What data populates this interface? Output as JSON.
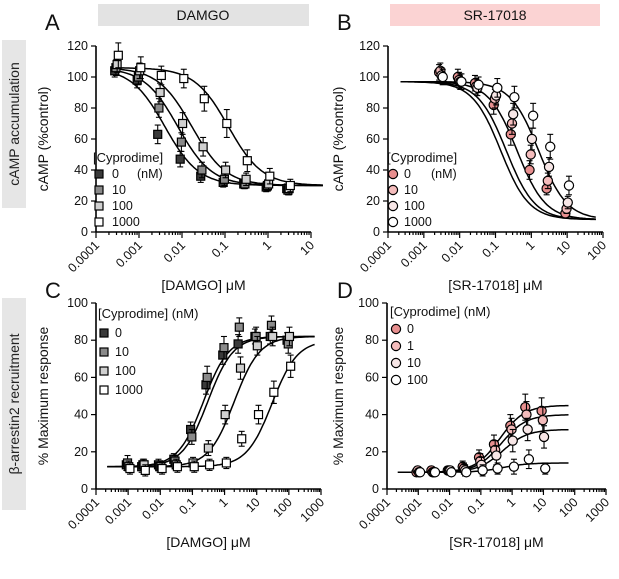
{
  "row_labels": [
    "cAMP accumulation",
    "β-arrestin2 recruitment"
  ],
  "column_headers": [
    {
      "text": "DAMGO",
      "color": "#e3e3e3"
    },
    {
      "text": "SR-17018",
      "color": "#fbd3d3"
    }
  ],
  "chart_data": [
    {
      "panel": "A",
      "type": "scatter",
      "xlabel": "[DAMGO] μM",
      "ylabel": "cAMP (%control)",
      "xscale": "log",
      "xlim": [
        0.0001,
        10
      ],
      "ylim": [
        0,
        120
      ],
      "xticks": [
        "0.0001",
        "0.001",
        "0.01",
        "0.1",
        "1",
        "10"
      ],
      "yticks": [
        "0",
        "20",
        "40",
        "60",
        "80",
        "100",
        "120"
      ],
      "legend_title": "[Cyprodime]",
      "legend_unit": "(nM)",
      "series": [
        {
          "name": "0",
          "marker": "square",
          "fill": "#3a3a3a",
          "top": 106,
          "bottom": 30,
          "ec50": 0.004,
          "x": [
            0.0003,
            0.001,
            0.003,
            0.01,
            0.03,
            0.1,
            0.3,
            1,
            3
          ],
          "y": [
            104,
            98,
            63,
            47,
            36,
            32,
            31,
            29,
            28
          ],
          "err": [
            4,
            5,
            6,
            5,
            4,
            3,
            3,
            3,
            3
          ]
        },
        {
          "name": "10",
          "marker": "square",
          "fill": "#8a8a8a",
          "top": 106,
          "bottom": 30,
          "ec50": 0.008,
          "x": [
            0.0003,
            0.001,
            0.003,
            0.01,
            0.03,
            0.1,
            0.3,
            1,
            3
          ],
          "y": [
            106,
            100,
            80,
            58,
            40,
            34,
            31,
            30,
            27
          ],
          "err": [
            5,
            5,
            6,
            6,
            5,
            4,
            3,
            3,
            3
          ]
        },
        {
          "name": "100",
          "marker": "square",
          "fill": "#d0d0d0",
          "top": 106,
          "bottom": 30,
          "ec50": 0.017,
          "x": [
            0.0003,
            0.001,
            0.003,
            0.01,
            0.03,
            0.1,
            0.3,
            1,
            3
          ],
          "y": [
            108,
            104,
            90,
            70,
            55,
            40,
            34,
            31,
            28
          ],
          "err": [
            5,
            5,
            6,
            7,
            6,
            5,
            4,
            4,
            4
          ]
        },
        {
          "name": "1000",
          "marker": "square",
          "fill": "#ffffff",
          "top": 106,
          "bottom": 30,
          "ec50": 0.12,
          "x": [
            0.0003,
            0.001,
            0.003,
            0.01,
            0.03,
            0.1,
            0.3,
            1,
            3
          ],
          "y": [
            114,
            106,
            101,
            99,
            86,
            70,
            46,
            36,
            30
          ],
          "err": [
            8,
            7,
            6,
            6,
            8,
            9,
            7,
            5,
            4
          ]
        }
      ]
    },
    {
      "panel": "B",
      "type": "scatter",
      "xlabel": "[SR-17018] μM",
      "ylabel": "cAMP (%control)",
      "xscale": "log",
      "xlim": [
        0.0001,
        100
      ],
      "ylim": [
        0,
        120
      ],
      "xticks": [
        "0.0001",
        "0.001",
        "0.01",
        "0.1",
        "1",
        "10",
        "100"
      ],
      "yticks": [
        "0",
        "20",
        "40",
        "60",
        "80",
        "100",
        "120"
      ],
      "legend_title": "[Cyprodime]",
      "legend_unit": "(nM)",
      "series": [
        {
          "name": "0",
          "marker": "circle",
          "fill": "#e88f8f",
          "top": 97,
          "bottom": 8,
          "ec50": 0.14,
          "x": [
            0.003,
            0.01,
            0.03,
            0.1,
            0.3,
            1,
            3,
            10
          ],
          "y": [
            103,
            100,
            96,
            82,
            63,
            40,
            28,
            12
          ],
          "err": [
            5,
            5,
            5,
            6,
            7,
            6,
            4,
            3
          ]
        },
        {
          "name": "10",
          "marker": "circle",
          "fill": "#f4bcbc",
          "top": 97,
          "bottom": 8,
          "ec50": 0.2,
          "x": [
            0.003,
            0.01,
            0.03,
            0.1,
            0.3,
            1,
            3,
            10
          ],
          "y": [
            104,
            98,
            94,
            86,
            70,
            50,
            33,
            15
          ],
          "err": [
            5,
            5,
            5,
            6,
            7,
            6,
            5,
            3
          ]
        },
        {
          "name": "100",
          "marker": "circle",
          "fill": "#f7e6e6",
          "top": 97,
          "bottom": 8,
          "ec50": 0.4,
          "x": [
            0.003,
            0.01,
            0.03,
            0.1,
            0.3,
            1,
            3,
            10
          ],
          "y": [
            101,
            97,
            93,
            88,
            76,
            60,
            42,
            19
          ],
          "err": [
            5,
            5,
            5,
            6,
            7,
            7,
            6,
            4
          ]
        },
        {
          "name": "1000",
          "marker": "circle",
          "fill": "#ffffff",
          "top": 97,
          "bottom": 8,
          "ec50": 1.6,
          "x": [
            0.003,
            0.01,
            0.03,
            0.1,
            0.3,
            1,
            3,
            10
          ],
          "y": [
            100,
            97,
            95,
            93,
            87,
            75,
            55,
            30
          ],
          "err": [
            5,
            5,
            5,
            6,
            7,
            8,
            8,
            6
          ]
        }
      ]
    },
    {
      "panel": "C",
      "type": "scatter",
      "xlabel": "[DAMGO] μM",
      "ylabel": "% Maximum response",
      "xscale": "log",
      "xlim": [
        0.0001,
        1000
      ],
      "ylim": [
        0,
        100
      ],
      "xticks": [
        "0.0001",
        "0.001",
        "0.01",
        "0.1",
        "1",
        "10",
        "100",
        "1000"
      ],
      "yticks": [
        "0",
        "20",
        "40",
        "60",
        "80",
        "100"
      ],
      "legend_title": "[Cyprodime] (nM)",
      "series": [
        {
          "name": "0",
          "marker": "square",
          "fill": "#3a3a3a",
          "top": 82,
          "bottom": 12,
          "ec50": 0.22,
          "x": [
            0.001,
            0.003,
            0.01,
            0.03,
            0.1,
            0.3,
            1,
            3,
            10,
            30,
            100
          ],
          "y": [
            13,
            12,
            13,
            16,
            32,
            56,
            72,
            78,
            82,
            82,
            80
          ],
          "err": [
            3,
            3,
            3,
            3,
            4,
            5,
            5,
            5,
            4,
            4,
            4
          ]
        },
        {
          "name": "10",
          "marker": "square",
          "fill": "#8a8a8a",
          "top": 82,
          "bottom": 12,
          "ec50": 0.3,
          "x": [
            0.001,
            0.003,
            0.01,
            0.03,
            0.1,
            0.3,
            1,
            3,
            10,
            30,
            100
          ],
          "y": [
            14,
            13,
            12,
            15,
            28,
            60,
            76,
            87,
            82,
            88,
            78
          ],
          "err": [
            4,
            3,
            3,
            3,
            4,
            6,
            6,
            5,
            5,
            5,
            5
          ]
        },
        {
          "name": "100",
          "marker": "square",
          "fill": "#d0d0d0",
          "top": 82,
          "bottom": 12,
          "ec50": 2.0,
          "x": [
            0.001,
            0.003,
            0.01,
            0.03,
            0.1,
            0.3,
            1,
            3,
            10,
            30,
            100
          ],
          "y": [
            12,
            13,
            12,
            13,
            14,
            22,
            40,
            65,
            77,
            82,
            82
          ],
          "err": [
            3,
            3,
            3,
            3,
            3,
            4,
            5,
            6,
            5,
            5,
            5
          ]
        },
        {
          "name": "1000",
          "marker": "square",
          "fill": "#ffffff",
          "top": 80,
          "bottom": 12,
          "ec50": 30,
          "x": [
            0.001,
            0.003,
            0.01,
            0.03,
            0.1,
            0.3,
            1,
            3,
            10,
            30,
            100
          ],
          "y": [
            11,
            10,
            11,
            12,
            12,
            13,
            14,
            27,
            40,
            52,
            66
          ],
          "err": [
            3,
            3,
            3,
            3,
            3,
            3,
            3,
            4,
            5,
            6,
            6
          ]
        }
      ]
    },
    {
      "panel": "D",
      "type": "scatter",
      "xlabel": "[SR-17018] μM",
      "ylabel": "% Maximum response",
      "xscale": "log",
      "xlim": [
        0.0001,
        1000
      ],
      "ylim": [
        0,
        100
      ],
      "xticks": [
        "0.0001",
        "0.001",
        "0.01",
        "0.1",
        "1",
        "10",
        "100",
        "1000"
      ],
      "yticks": [
        "0",
        "20",
        "40",
        "60",
        "80",
        "100"
      ],
      "legend_title": "[Cyprodime] (nM)",
      "series": [
        {
          "name": "0",
          "marker": "circle",
          "fill": "#e88f8f",
          "top": 45,
          "bottom": 9,
          "ec50": 0.4,
          "x": [
            0.001,
            0.003,
            0.01,
            0.03,
            0.1,
            0.3,
            1,
            3,
            10
          ],
          "y": [
            9,
            10,
            10,
            12,
            17,
            24,
            34,
            44,
            42
          ],
          "err": [
            2,
            2,
            2,
            3,
            4,
            5,
            6,
            7,
            7
          ]
        },
        {
          "name": "1",
          "marker": "circle",
          "fill": "#f4bcbc",
          "top": 40,
          "bottom": 9,
          "ec50": 0.45,
          "x": [
            0.001,
            0.003,
            0.01,
            0.03,
            0.1,
            0.3,
            1,
            3,
            10
          ],
          "y": [
            10,
            9,
            10,
            11,
            15,
            21,
            32,
            40,
            37
          ],
          "err": [
            2,
            2,
            2,
            3,
            4,
            5,
            6,
            7,
            7
          ]
        },
        {
          "name": "10",
          "marker": "circle",
          "fill": "#f7e6e6",
          "top": 32,
          "bottom": 9,
          "ec50": 0.5,
          "x": [
            0.001,
            0.003,
            0.01,
            0.03,
            0.1,
            0.3,
            1,
            3,
            10
          ],
          "y": [
            9,
            9,
            10,
            10,
            13,
            18,
            26,
            32,
            28
          ],
          "err": [
            2,
            2,
            2,
            3,
            4,
            5,
            6,
            6,
            6
          ]
        },
        {
          "name": "100",
          "marker": "circle",
          "fill": "#ffffff",
          "top": 14,
          "bottom": 9,
          "ec50": 0.5,
          "x": [
            0.001,
            0.003,
            0.01,
            0.03,
            0.1,
            0.3,
            1,
            3,
            10
          ],
          "y": [
            9,
            9,
            9,
            9,
            10,
            11,
            12,
            16,
            11
          ],
          "err": [
            2,
            2,
            2,
            2,
            3,
            3,
            4,
            5,
            3
          ]
        }
      ]
    }
  ]
}
